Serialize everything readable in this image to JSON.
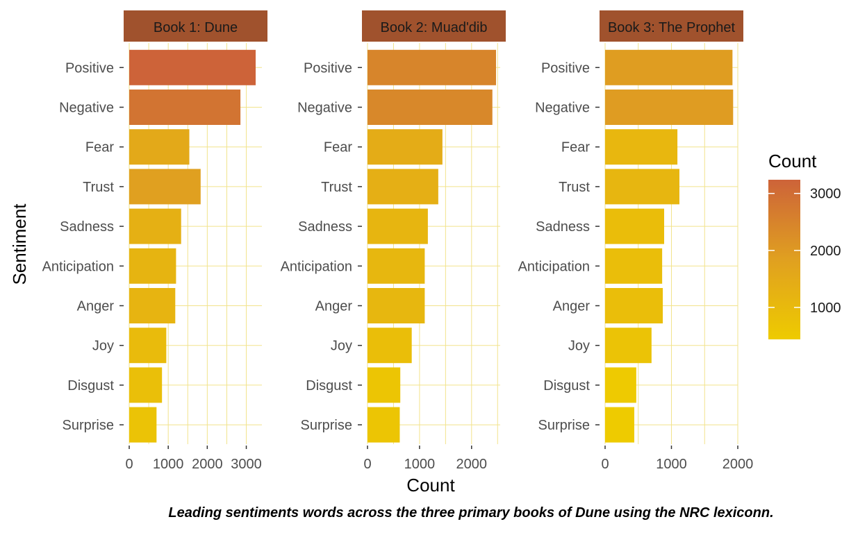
{
  "chart_data": {
    "type": "bar",
    "orientation": "horizontal",
    "facets": [
      "Book 1: Dune",
      "Book 2: Muad'dib",
      "Book 3: The Prophet"
    ],
    "categories": [
      "Positive",
      "Negative",
      "Fear",
      "Trust",
      "Sadness",
      "Anticipation",
      "Anger",
      "Joy",
      "Disgust",
      "Surprise"
    ],
    "series": [
      {
        "facet": "Book 1: Dune",
        "values": [
          3240,
          2850,
          1540,
          1830,
          1330,
          1200,
          1180,
          950,
          840,
          700
        ]
      },
      {
        "facet": "Book 2: Muad'dib",
        "values": [
          2470,
          2400,
          1440,
          1360,
          1160,
          1100,
          1100,
          850,
          630,
          620
        ]
      },
      {
        "facet": "Book 3: The Prophet",
        "values": [
          1920,
          1930,
          1090,
          1120,
          890,
          860,
          870,
          700,
          470,
          440
        ]
      }
    ],
    "xlabel": "Count",
    "ylabel": "Sentiment",
    "xlims": [
      [
        0,
        3400
      ],
      [
        0,
        2550
      ],
      [
        0,
        2000
      ]
    ],
    "xticks": [
      [
        0,
        1000,
        2000,
        3000
      ],
      [
        0,
        1000,
        2000
      ],
      [
        0,
        1000,
        2000
      ]
    ],
    "xtick_labels": [
      [
        "0",
        "1000",
        "2000",
        "3000"
      ],
      [
        "0",
        "1000",
        "2000"
      ],
      [
        "0",
        "1000",
        "2000"
      ]
    ],
    "legend": {
      "title": "Count",
      "placement": "right",
      "breaks": [
        3000,
        2000,
        1000
      ],
      "labels": [
        "3000",
        "2000",
        "1000"
      ],
      "range": [
        440,
        3240
      ],
      "colors": [
        "#eecb00",
        "#e0a020",
        "#cd6339"
      ]
    },
    "colors": {
      "strip_background": "#a0522d",
      "grid": "#f2e38b"
    },
    "caption": "Leading sentiments words across the three primary books of Dune using the NRC lexiconn."
  }
}
